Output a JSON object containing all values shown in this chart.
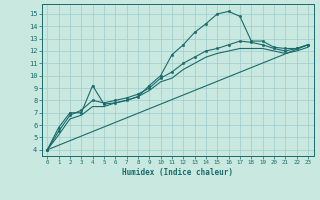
{
  "title": "",
  "xlabel": "Humidex (Indice chaleur)",
  "xlim": [
    -0.5,
    23.5
  ],
  "ylim": [
    3.5,
    15.8
  ],
  "xticks": [
    0,
    1,
    2,
    3,
    4,
    5,
    6,
    7,
    8,
    9,
    10,
    11,
    12,
    13,
    14,
    15,
    16,
    17,
    18,
    19,
    20,
    21,
    22,
    23
  ],
  "yticks": [
    4,
    5,
    6,
    7,
    8,
    9,
    10,
    11,
    12,
    13,
    14,
    15
  ],
  "bg_color": "#c8e8e0",
  "line_color": "#1a6b6b",
  "grid_color": "#a0cccc",
  "line1_x": [
    0,
    1,
    2,
    3,
    4,
    5,
    6,
    7,
    8,
    9,
    10,
    11,
    12,
    13,
    14,
    15,
    16,
    17,
    18,
    19,
    20,
    21,
    22,
    23
  ],
  "line1_y": [
    4.0,
    5.8,
    7.0,
    7.0,
    9.2,
    7.7,
    7.8,
    8.0,
    8.3,
    9.2,
    10.0,
    11.7,
    12.5,
    13.5,
    14.2,
    15.0,
    15.2,
    14.8,
    12.8,
    12.8,
    12.3,
    12.2,
    12.2,
    12.5
  ],
  "line2_x": [
    0,
    1,
    2,
    3,
    4,
    5,
    6,
    7,
    8,
    9,
    10,
    11,
    12,
    13,
    14,
    15,
    16,
    17,
    18,
    19,
    20,
    21,
    22,
    23
  ],
  "line2_y": [
    4.0,
    5.5,
    6.8,
    7.2,
    8.0,
    7.8,
    8.0,
    8.2,
    8.5,
    9.0,
    9.8,
    10.3,
    11.0,
    11.5,
    12.0,
    12.2,
    12.5,
    12.8,
    12.7,
    12.5,
    12.2,
    12.0,
    12.2,
    12.5
  ],
  "line3_x": [
    0,
    1,
    2,
    3,
    4,
    5,
    6,
    7,
    8,
    9,
    10,
    11,
    12,
    13,
    14,
    15,
    16,
    17,
    18,
    19,
    20,
    21,
    22,
    23
  ],
  "line3_y": [
    4.0,
    5.2,
    6.5,
    6.8,
    7.5,
    7.5,
    7.8,
    8.0,
    8.3,
    8.8,
    9.5,
    9.8,
    10.5,
    11.0,
    11.5,
    11.8,
    12.0,
    12.2,
    12.2,
    12.2,
    12.0,
    11.8,
    12.0,
    12.3
  ],
  "line4_x": [
    0,
    23
  ],
  "line4_y": [
    4.0,
    12.5
  ]
}
